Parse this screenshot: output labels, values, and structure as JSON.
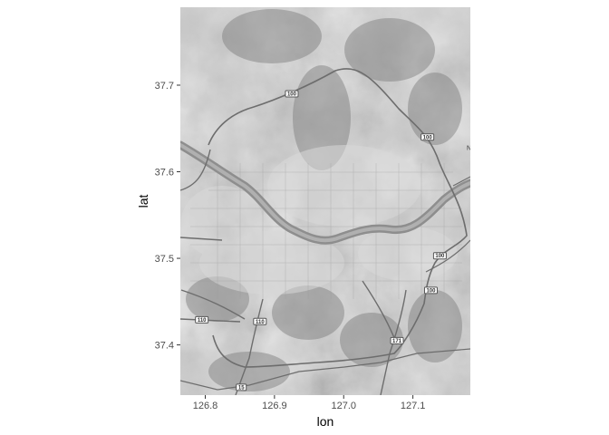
{
  "chart_data": {
    "type": "map",
    "title": "",
    "xlabel": "lon",
    "ylabel": "lat",
    "xlim": [
      126.764,
      127.183
    ],
    "ylim": [
      37.342,
      37.79
    ],
    "x_ticks": [
      {
        "value": 126.8,
        "label": "126.8"
      },
      {
        "value": 126.9,
        "label": "126.9"
      },
      {
        "value": 127.0,
        "label": "127.0"
      },
      {
        "value": 127.1,
        "label": "127.1"
      }
    ],
    "y_ticks": [
      {
        "value": 37.4,
        "label": "37.4"
      },
      {
        "value": 37.5,
        "label": "37.5"
      },
      {
        "value": 37.6,
        "label": "37.6"
      },
      {
        "value": 37.7,
        "label": "37.7"
      }
    ],
    "grid": false,
    "basemap": "grayscale terrain",
    "road_badges": [
      {
        "label": "100",
        "lon": 126.925,
        "lat": 37.69
      },
      {
        "label": "100",
        "lon": 127.121,
        "lat": 37.64
      },
      {
        "label": "100",
        "lon": 127.139,
        "lat": 37.503
      },
      {
        "label": "100",
        "lon": 127.126,
        "lat": 37.463
      },
      {
        "label": "110",
        "lon": 126.795,
        "lat": 37.429
      },
      {
        "label": "110",
        "lon": 126.879,
        "lat": 37.427
      },
      {
        "label": "171",
        "lon": 127.077,
        "lat": 37.405
      },
      {
        "label": "15",
        "lon": 126.852,
        "lat": 37.351
      }
    ],
    "edge_labels": [
      {
        "label": "N",
        "lon": 127.181,
        "lat": 37.625
      }
    ]
  }
}
